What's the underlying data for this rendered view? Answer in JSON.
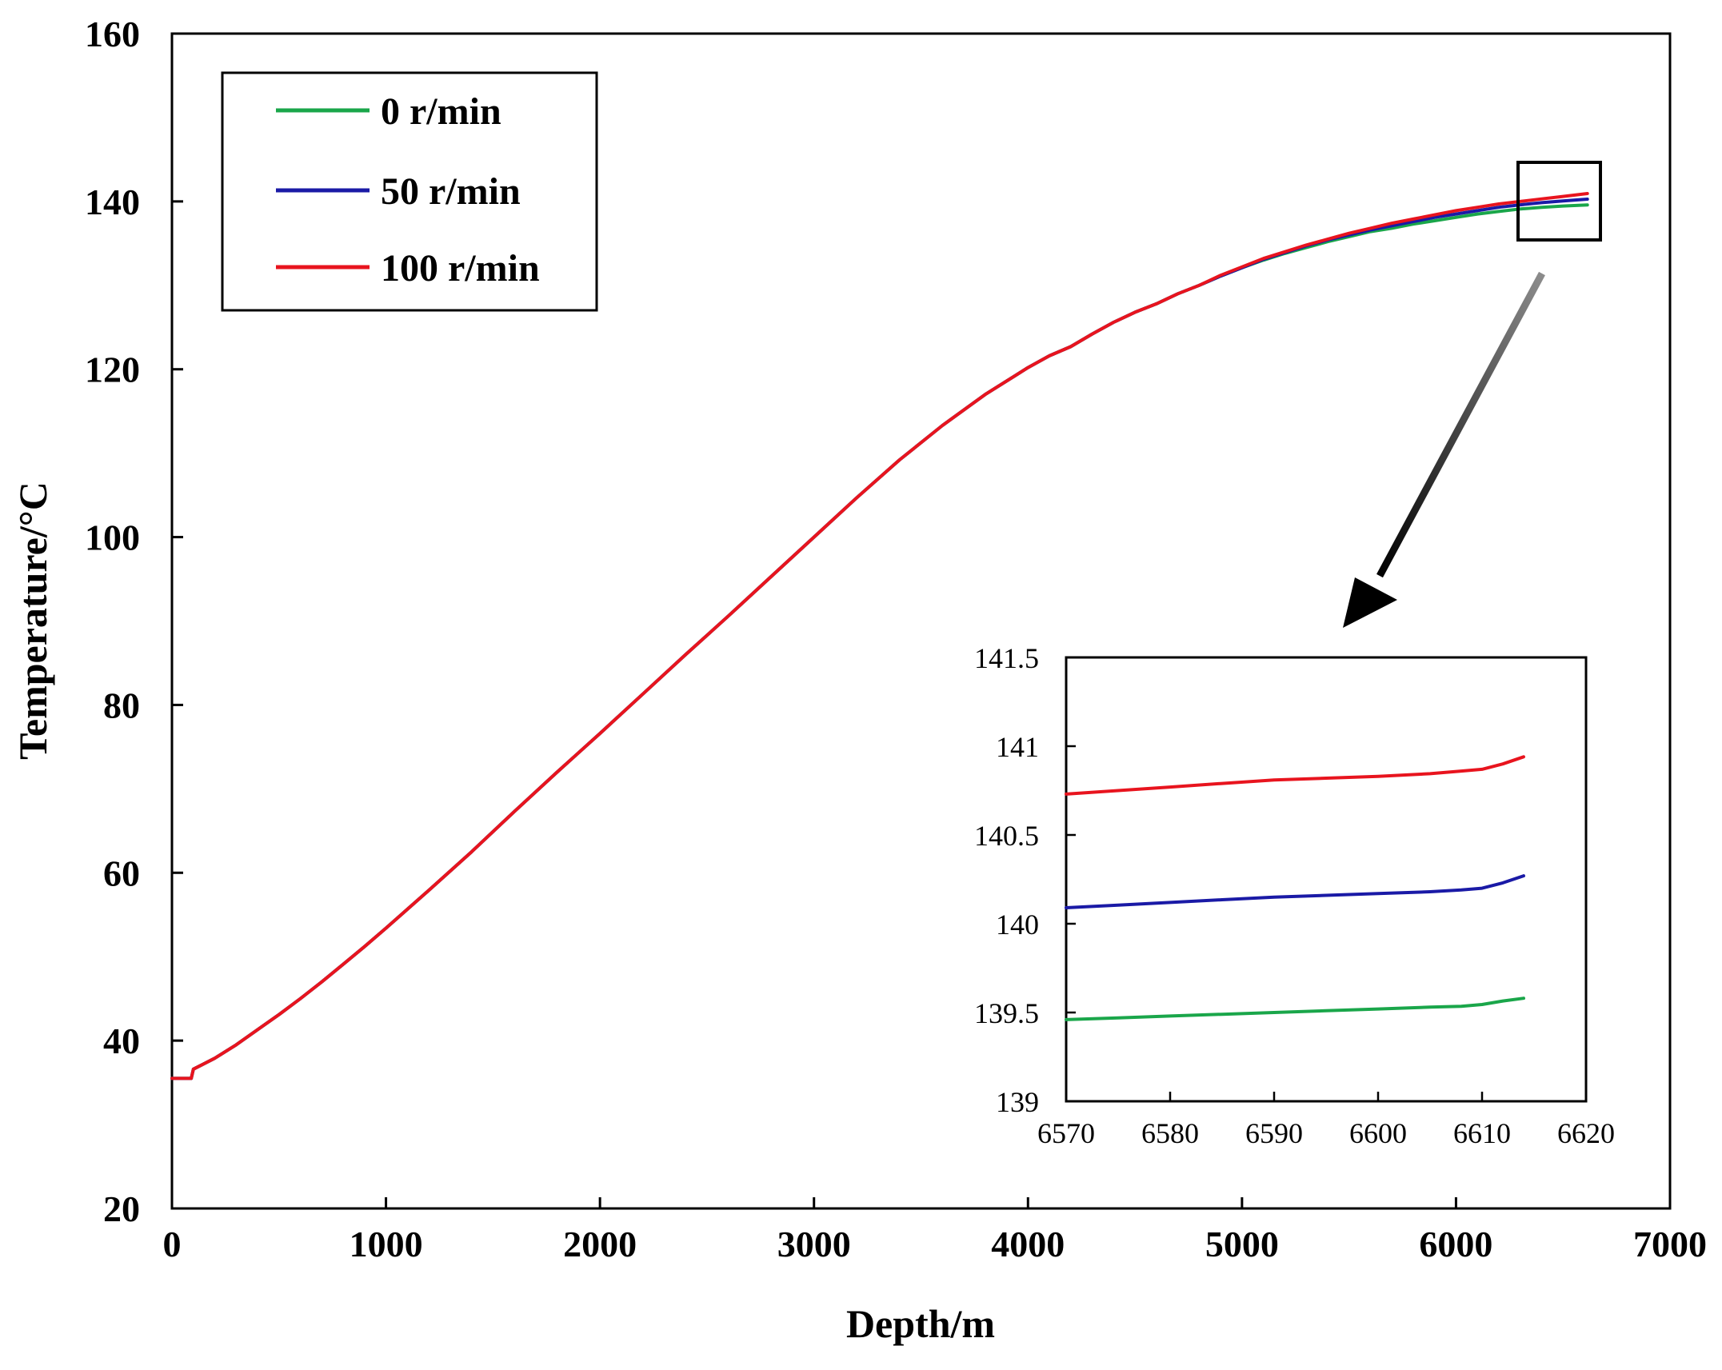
{
  "chart_data": [
    {
      "type": "line",
      "role": "main",
      "title": "",
      "xlabel": "Depth/m",
      "ylabel": "Temperature/°C",
      "xlim": [
        0,
        7000
      ],
      "ylim": [
        20,
        160
      ],
      "xticks": [
        0,
        1000,
        2000,
        3000,
        4000,
        5000,
        6000,
        7000
      ],
      "yticks": [
        20,
        40,
        60,
        80,
        100,
        120,
        140,
        160
      ],
      "grid": false,
      "legend_position": "top-left",
      "series": [
        {
          "name": "0 r/min",
          "color": "#1aa64a",
          "x": [
            0,
            90,
            100,
            200,
            300,
            400,
            500,
            600,
            700,
            800,
            900,
            1000,
            1200,
            1400,
            1600,
            1800,
            1900,
            2000,
            2200,
            2400,
            2600,
            2800,
            3000,
            3200,
            3400,
            3600,
            3800,
            4000,
            4100,
            4200,
            4300,
            4400,
            4500,
            4600,
            4700,
            4800,
            4900,
            5000,
            5100,
            5200,
            5300,
            5400,
            5500,
            5600,
            5700,
            5800,
            5900,
            6000,
            6100,
            6200,
            6300,
            6400,
            6500,
            6614
          ],
          "y": [
            35.5,
            35.5,
            36.6,
            37.9,
            39.5,
            41.3,
            43.1,
            45.0,
            47.0,
            49.1,
            51.2,
            53.4,
            57.9,
            62.5,
            67.3,
            72.0,
            74.3,
            76.6,
            81.3,
            86.0,
            90.6,
            95.3,
            100.0,
            104.7,
            109.2,
            113.3,
            117.0,
            120.2,
            121.6,
            122.7,
            124.2,
            125.6,
            126.8,
            127.8,
            129.0,
            130.0,
            131.1,
            132.1,
            133.0,
            133.8,
            134.5,
            135.2,
            135.8,
            136.4,
            136.8,
            137.3,
            137.7,
            138.1,
            138.5,
            138.8,
            139.1,
            139.3,
            139.45,
            139.58
          ]
        },
        {
          "name": "50 r/min",
          "color": "#1a1aa6",
          "x": [
            0,
            90,
            100,
            200,
            300,
            400,
            500,
            600,
            700,
            800,
            900,
            1000,
            1200,
            1400,
            1600,
            1800,
            1900,
            2000,
            2200,
            2400,
            2600,
            2800,
            3000,
            3200,
            3400,
            3600,
            3800,
            4000,
            4100,
            4200,
            4300,
            4400,
            4500,
            4600,
            4700,
            4800,
            4900,
            5000,
            5100,
            5200,
            5300,
            5400,
            5500,
            5600,
            5700,
            5800,
            5900,
            6000,
            6100,
            6200,
            6300,
            6400,
            6500,
            6614
          ],
          "y": [
            35.5,
            35.5,
            36.6,
            37.9,
            39.5,
            41.3,
            43.1,
            45.0,
            47.0,
            49.1,
            51.2,
            53.4,
            57.9,
            62.5,
            67.3,
            72.0,
            74.3,
            76.6,
            81.3,
            86.0,
            90.6,
            95.3,
            100.0,
            104.7,
            109.2,
            113.3,
            117.0,
            120.2,
            121.6,
            122.7,
            124.2,
            125.6,
            126.8,
            127.8,
            129.0,
            130.0,
            131.1,
            132.1,
            133.1,
            133.9,
            134.7,
            135.4,
            136.0,
            136.6,
            137.1,
            137.6,
            138.1,
            138.5,
            138.9,
            139.3,
            139.6,
            139.85,
            140.05,
            140.27
          ]
        },
        {
          "name": "100 r/min",
          "color": "#e8141e",
          "x": [
            0,
            90,
            100,
            200,
            300,
            400,
            500,
            600,
            700,
            800,
            900,
            1000,
            1200,
            1400,
            1600,
            1800,
            1900,
            2000,
            2200,
            2400,
            2600,
            2800,
            3000,
            3200,
            3400,
            3600,
            3800,
            4000,
            4100,
            4200,
            4300,
            4400,
            4500,
            4600,
            4700,
            4800,
            4900,
            5000,
            5100,
            5200,
            5300,
            5400,
            5500,
            5600,
            5700,
            5800,
            5900,
            6000,
            6100,
            6200,
            6300,
            6400,
            6500,
            6614
          ],
          "y": [
            35.5,
            35.5,
            36.6,
            37.9,
            39.5,
            41.3,
            43.1,
            45.0,
            47.0,
            49.1,
            51.2,
            53.4,
            57.9,
            62.5,
            67.3,
            72.0,
            74.3,
            76.6,
            81.3,
            86.0,
            90.6,
            95.3,
            100.0,
            104.7,
            109.2,
            113.3,
            117.0,
            120.2,
            121.6,
            122.7,
            124.2,
            125.6,
            126.8,
            127.8,
            129.0,
            130.0,
            131.2,
            132.2,
            133.2,
            134.0,
            134.8,
            135.5,
            136.2,
            136.8,
            137.4,
            137.9,
            138.4,
            138.9,
            139.3,
            139.7,
            140.0,
            140.3,
            140.6,
            140.94
          ]
        }
      ]
    },
    {
      "type": "line",
      "role": "inset",
      "title": "",
      "xlabel": "",
      "ylabel": "",
      "xlim": [
        6570,
        6620
      ],
      "ylim": [
        139,
        141.5
      ],
      "xticks": [
        6570,
        6580,
        6590,
        6600,
        6610,
        6620
      ],
      "yticks": [
        139,
        139.5,
        140,
        140.5,
        141,
        141.5
      ],
      "grid": false,
      "series": [
        {
          "name": "0 r/min",
          "color": "#1aa64a",
          "x": [
            6570,
            6575,
            6580,
            6585,
            6590,
            6595,
            6600,
            6605,
            6608,
            6610,
            6612,
            6614
          ],
          "y": [
            139.46,
            139.47,
            139.48,
            139.49,
            139.5,
            139.51,
            139.52,
            139.53,
            139.535,
            139.545,
            139.565,
            139.58
          ]
        },
        {
          "name": "50 r/min",
          "color": "#1a1aa6",
          "x": [
            6570,
            6575,
            6580,
            6585,
            6590,
            6595,
            6600,
            6605,
            6608,
            6610,
            6612,
            6614
          ],
          "y": [
            140.09,
            140.105,
            140.12,
            140.135,
            140.15,
            140.16,
            140.17,
            140.18,
            140.19,
            140.2,
            140.23,
            140.27
          ]
        },
        {
          "name": "100 r/min",
          "color": "#e8141e",
          "x": [
            6570,
            6575,
            6580,
            6585,
            6590,
            6595,
            6600,
            6605,
            6608,
            6610,
            6612,
            6614
          ],
          "y": [
            140.73,
            140.75,
            140.77,
            140.79,
            140.81,
            140.82,
            140.83,
            140.845,
            140.86,
            140.87,
            140.9,
            140.94
          ]
        }
      ]
    }
  ]
}
